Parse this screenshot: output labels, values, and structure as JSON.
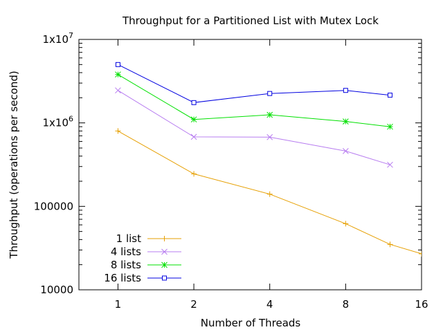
{
  "chart_data": {
    "type": "line",
    "title": "Throughput for a Partitioned List with Mutex Lock",
    "xlabel": "Number of Threads",
    "ylabel": "Throughput (operations per second)",
    "x_scale": "log2",
    "y_scale": "log10",
    "xlim": [
      0.7,
      16
    ],
    "ylim": [
      10000,
      10000000
    ],
    "x_ticks": [
      {
        "value": 1,
        "label": "1"
      },
      {
        "value": 2,
        "label": "2"
      },
      {
        "value": 4,
        "label": "4"
      },
      {
        "value": 8,
        "label": "8"
      },
      {
        "value": 16,
        "label": "16"
      }
    ],
    "y_ticks": [
      {
        "value": 10000,
        "label": "10000",
        "sup": ""
      },
      {
        "value": 100000,
        "label": "100000",
        "sup": ""
      },
      {
        "value": 1000000,
        "label": "1x10",
        "sup": "6"
      },
      {
        "value": 10000000,
        "label": "1x10",
        "sup": "7"
      }
    ],
    "grid": false,
    "legend_position": "bottom-left",
    "series": [
      {
        "name": "1 list",
        "color": "#e69f00",
        "marker": "plus",
        "x": [
          1,
          2,
          4,
          8,
          12,
          16
        ],
        "y": [
          800000,
          245000,
          140000,
          62000,
          35000,
          27000
        ]
      },
      {
        "name": "4 lists",
        "color": "#b77cf0",
        "marker": "cross",
        "x": [
          1,
          2,
          4,
          8,
          12
        ],
        "y": [
          2450000,
          680000,
          675000,
          460000,
          315000
        ]
      },
      {
        "name": "8 lists",
        "color": "#00e000",
        "marker": "star",
        "x": [
          1,
          2,
          4,
          8,
          12
        ],
        "y": [
          3800000,
          1100000,
          1250000,
          1040000,
          900000
        ]
      },
      {
        "name": "16 lists",
        "color": "#0000e0",
        "marker": "square",
        "x": [
          1,
          2,
          4,
          8,
          12
        ],
        "y": [
          5000000,
          1750000,
          2250000,
          2450000,
          2150000
        ]
      }
    ]
  }
}
